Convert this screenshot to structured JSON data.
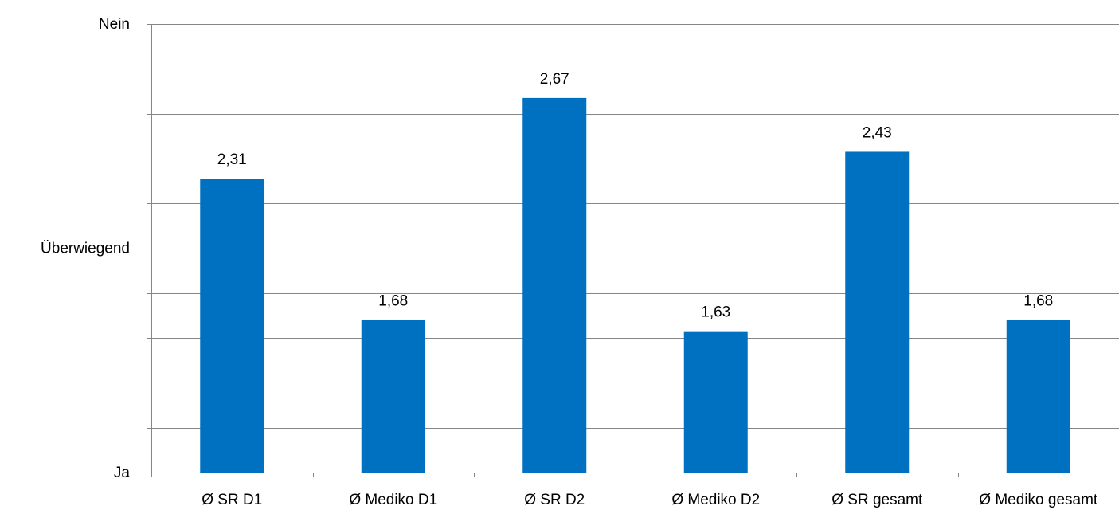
{
  "chart_data": {
    "type": "bar",
    "categories": [
      "Ø SR D1",
      "Ø Mediko D1",
      "Ø SR D2",
      "Ø Mediko D2",
      "Ø SR gesamt",
      "Ø Mediko gesamt"
    ],
    "values": [
      2.31,
      1.68,
      2.67,
      1.63,
      2.43,
      1.68
    ],
    "value_labels": [
      "2,31",
      "1,68",
      "2,67",
      "1,63",
      "2,43",
      "1,68"
    ],
    "y_tick_labels": [
      {
        "value": 1,
        "label": "Ja"
      },
      {
        "value": 2,
        "label": "Überwiegend"
      },
      {
        "value": 3,
        "label": "Nein"
      }
    ],
    "ylim": [
      1,
      3
    ],
    "gridline_step": 0.2,
    "grid": true,
    "bar_color": "#0070C0",
    "gridline_color": "#868686",
    "axis_color": "#868686"
  }
}
